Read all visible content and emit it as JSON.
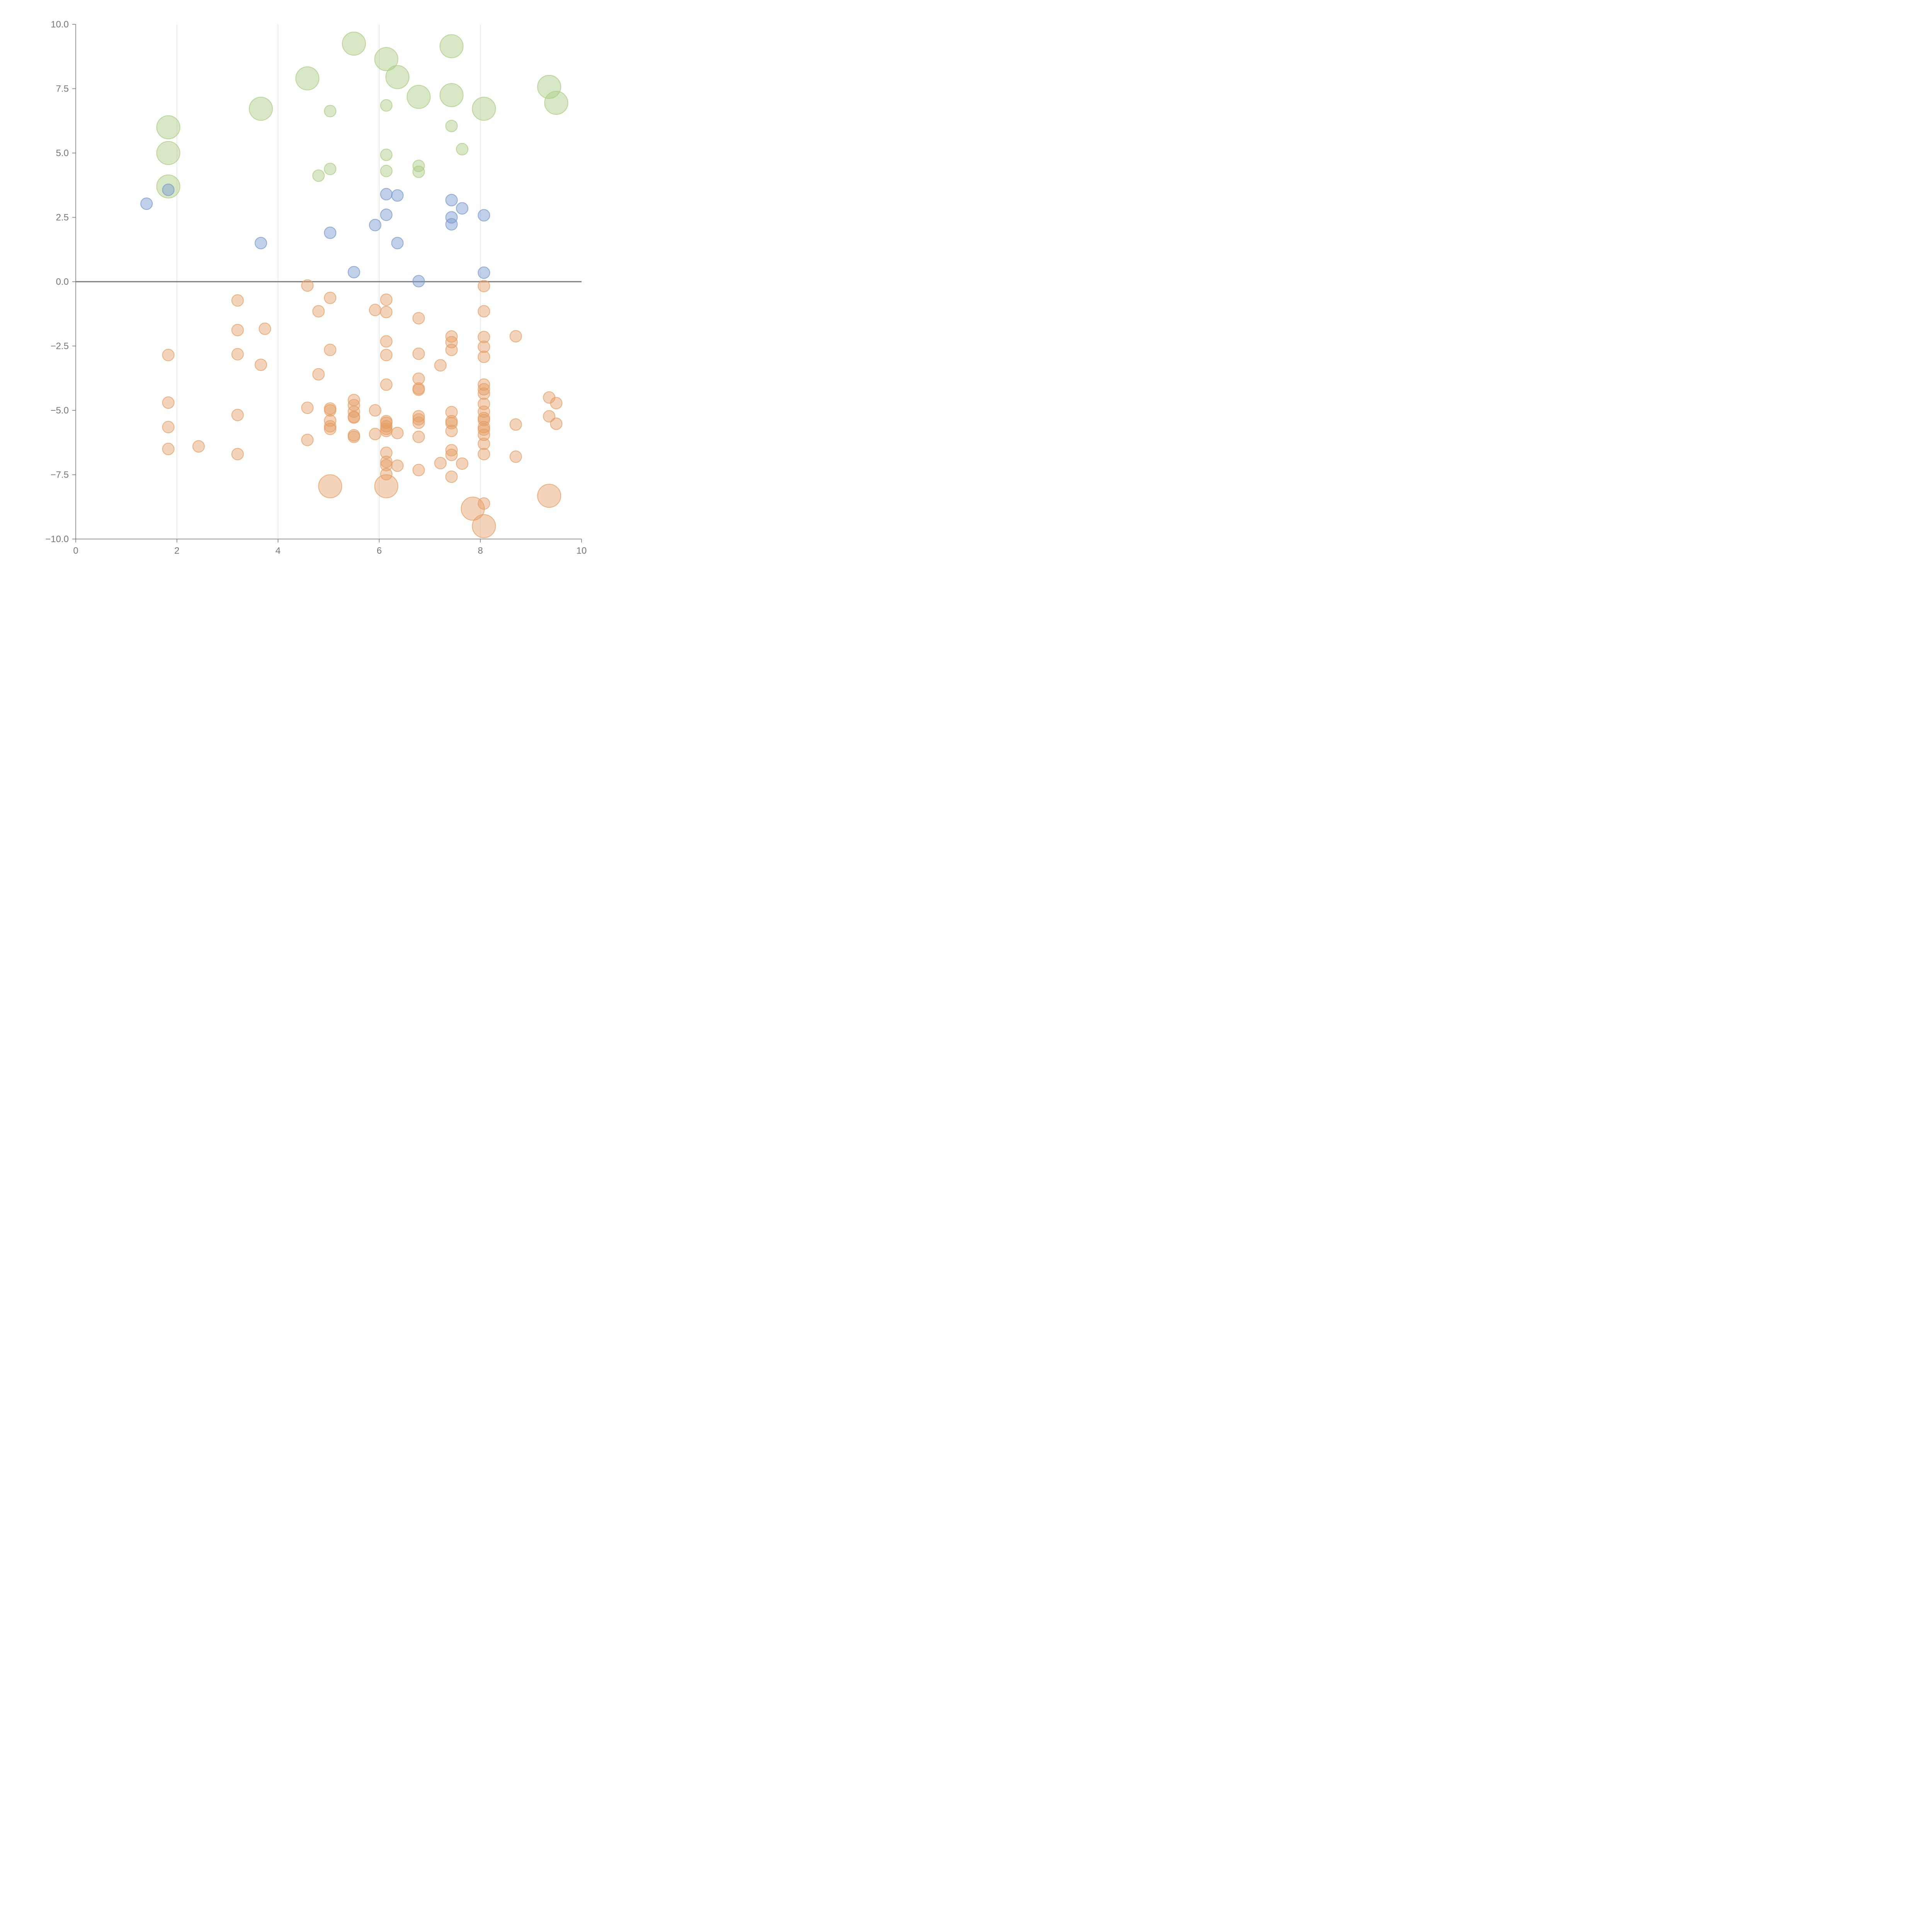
{
  "chart_data": {
    "type": "scatter",
    "title": "",
    "xlabel": "",
    "ylabel": "",
    "xlim": [
      0,
      10
    ],
    "ylim": [
      -10,
      10
    ],
    "xticks": [
      0,
      2,
      4,
      6,
      8,
      10
    ],
    "yticks": [
      -10.0,
      -7.5,
      -5.0,
      -2.5,
      0.0,
      2.5,
      5.0,
      7.5,
      10.0
    ],
    "ytick_labels": [
      "−10.0",
      "−7.5",
      "−5.0",
      "−2.5",
      "0.0",
      "2.5",
      "5.0",
      "7.5",
      "10.0"
    ],
    "xtick_labels": [
      "0",
      "2",
      "4",
      "6",
      "8",
      "10"
    ],
    "grid": "vertical lines at x ticks",
    "zero_line": true,
    "legend": "none",
    "colors": {
      "green": "#a9cc80",
      "blue": "#7597cf",
      "orange": "#e59d63",
      "axis": "#777777"
    },
    "series": [
      {
        "color_key": "green",
        "points": [
          [
            5.5,
            9.25,
            "L"
          ],
          [
            7.43,
            9.15,
            "L"
          ],
          [
            6.14,
            8.65,
            "L"
          ],
          [
            4.58,
            7.9,
            "L"
          ],
          [
            6.36,
            7.95,
            "L"
          ],
          [
            9.36,
            7.57,
            "L"
          ],
          [
            6.78,
            7.18,
            "L"
          ],
          [
            7.43,
            7.25,
            "L"
          ],
          [
            9.5,
            6.95,
            "L"
          ],
          [
            3.66,
            6.72,
            "L"
          ],
          [
            8.07,
            6.72,
            "L"
          ],
          [
            1.83,
            6.0,
            "L"
          ],
          [
            1.83,
            5.0,
            "L"
          ],
          [
            1.83,
            3.7,
            "L"
          ],
          [
            6.14,
            6.85,
            "S"
          ],
          [
            5.03,
            6.63,
            "S"
          ],
          [
            7.43,
            6.05,
            "S"
          ],
          [
            7.64,
            5.15,
            "S"
          ],
          [
            6.14,
            4.93,
            "S"
          ],
          [
            6.78,
            4.5,
            "S"
          ],
          [
            5.03,
            4.38,
            "S"
          ],
          [
            6.14,
            4.3,
            "S"
          ],
          [
            6.78,
            4.27,
            "S"
          ],
          [
            4.8,
            4.12,
            "S"
          ]
        ]
      },
      {
        "color_key": "blue",
        "points": [
          [
            1.83,
            3.57,
            "S"
          ],
          [
            1.4,
            3.03,
            "S"
          ],
          [
            6.14,
            3.4,
            "S"
          ],
          [
            6.36,
            3.35,
            "S"
          ],
          [
            7.43,
            3.17,
            "S"
          ],
          [
            7.64,
            2.85,
            "S"
          ],
          [
            6.14,
            2.6,
            "S"
          ],
          [
            8.07,
            2.58,
            "S"
          ],
          [
            7.43,
            2.5,
            "S"
          ],
          [
            7.43,
            2.23,
            "S"
          ],
          [
            5.92,
            2.2,
            "S"
          ],
          [
            5.03,
            1.9,
            "S"
          ],
          [
            3.66,
            1.5,
            "S"
          ],
          [
            6.36,
            1.5,
            "S"
          ],
          [
            5.5,
            0.37,
            "S"
          ],
          [
            8.07,
            0.35,
            "S"
          ],
          [
            6.78,
            0.02,
            "S"
          ]
        ]
      },
      {
        "color_key": "orange",
        "points": [
          [
            4.58,
            -0.15,
            "S"
          ],
          [
            8.07,
            -0.17,
            "S"
          ],
          [
            5.03,
            -0.63,
            "S"
          ],
          [
            6.14,
            -0.7,
            "S"
          ],
          [
            3.2,
            -0.73,
            "S"
          ],
          [
            5.92,
            -1.1,
            "S"
          ],
          [
            4.8,
            -1.15,
            "S"
          ],
          [
            6.14,
            -1.18,
            "S"
          ],
          [
            8.07,
            -1.15,
            "S"
          ],
          [
            6.78,
            -1.42,
            "S"
          ],
          [
            3.74,
            -1.83,
            "S"
          ],
          [
            3.2,
            -1.88,
            "S"
          ],
          [
            7.43,
            -2.13,
            "S"
          ],
          [
            8.07,
            -2.15,
            "S"
          ],
          [
            8.7,
            -2.12,
            "S"
          ],
          [
            6.14,
            -2.32,
            "S"
          ],
          [
            7.43,
            -2.35,
            "S"
          ],
          [
            8.07,
            -2.53,
            "S"
          ],
          [
            5.03,
            -2.65,
            "S"
          ],
          [
            7.43,
            -2.65,
            "S"
          ],
          [
            3.2,
            -2.82,
            "S"
          ],
          [
            6.78,
            -2.8,
            "S"
          ],
          [
            1.83,
            -2.85,
            "S"
          ],
          [
            6.14,
            -2.85,
            "S"
          ],
          [
            8.07,
            -2.92,
            "S"
          ],
          [
            3.66,
            -3.23,
            "S"
          ],
          [
            7.21,
            -3.25,
            "S"
          ],
          [
            4.8,
            -3.6,
            "S"
          ],
          [
            6.78,
            -3.77,
            "S"
          ],
          [
            8.07,
            -4.0,
            "S"
          ],
          [
            6.14,
            -4.0,
            "S"
          ],
          [
            6.78,
            -4.15,
            "S"
          ],
          [
            6.78,
            -4.2,
            "S"
          ],
          [
            8.07,
            -4.18,
            "S"
          ],
          [
            8.07,
            -4.35,
            "S"
          ],
          [
            9.36,
            -4.5,
            "S"
          ],
          [
            5.5,
            -4.6,
            "S"
          ],
          [
            1.83,
            -4.7,
            "S"
          ],
          [
            9.5,
            -4.72,
            "S"
          ],
          [
            5.5,
            -4.8,
            "S"
          ],
          [
            8.07,
            -4.75,
            "S"
          ],
          [
            4.58,
            -4.9,
            "S"
          ],
          [
            5.03,
            -4.93,
            "S"
          ],
          [
            5.92,
            -5.0,
            "S"
          ],
          [
            5.03,
            -5.0,
            "S"
          ],
          [
            5.5,
            -5.05,
            "S"
          ],
          [
            7.43,
            -5.07,
            "S"
          ],
          [
            8.07,
            -5.05,
            "S"
          ],
          [
            3.2,
            -5.18,
            "S"
          ],
          [
            6.78,
            -5.23,
            "S"
          ],
          [
            9.36,
            -5.23,
            "S"
          ],
          [
            5.5,
            -5.25,
            "S"
          ],
          [
            5.5,
            -5.28,
            "S"
          ],
          [
            8.07,
            -5.3,
            "S"
          ],
          [
            6.78,
            -5.35,
            "S"
          ],
          [
            8.07,
            -5.38,
            "S"
          ],
          [
            5.03,
            -5.4,
            "S"
          ],
          [
            6.14,
            -5.42,
            "S"
          ],
          [
            7.43,
            -5.42,
            "S"
          ],
          [
            6.14,
            -5.48,
            "S"
          ],
          [
            7.43,
            -5.5,
            "S"
          ],
          [
            6.78,
            -5.48,
            "S"
          ],
          [
            9.5,
            -5.52,
            "S"
          ],
          [
            8.7,
            -5.55,
            "S"
          ],
          [
            6.14,
            -5.62,
            "S"
          ],
          [
            5.03,
            -5.62,
            "S"
          ],
          [
            1.83,
            -5.65,
            "S"
          ],
          [
            8.07,
            -5.65,
            "S"
          ],
          [
            5.03,
            -5.72,
            "S"
          ],
          [
            6.14,
            -5.72,
            "S"
          ],
          [
            8.07,
            -5.75,
            "S"
          ],
          [
            6.14,
            -5.8,
            "S"
          ],
          [
            7.43,
            -5.8,
            "S"
          ],
          [
            6.36,
            -5.88,
            "S"
          ],
          [
            5.92,
            -5.92,
            "S"
          ],
          [
            8.07,
            -5.95,
            "S"
          ],
          [
            5.5,
            -5.97,
            "S"
          ],
          [
            5.5,
            -6.03,
            "S"
          ],
          [
            6.78,
            -6.03,
            "S"
          ],
          [
            4.58,
            -6.15,
            "S"
          ],
          [
            8.07,
            -6.3,
            "S"
          ],
          [
            2.43,
            -6.4,
            "S"
          ],
          [
            1.83,
            -6.5,
            "S"
          ],
          [
            7.43,
            -6.55,
            "S"
          ],
          [
            6.14,
            -6.65,
            "S"
          ],
          [
            3.2,
            -6.7,
            "S"
          ],
          [
            8.07,
            -6.7,
            "S"
          ],
          [
            7.43,
            -6.73,
            "S"
          ],
          [
            8.7,
            -6.8,
            "S"
          ],
          [
            6.14,
            -7.0,
            "S"
          ],
          [
            7.21,
            -7.05,
            "S"
          ],
          [
            7.64,
            -7.07,
            "S"
          ],
          [
            6.14,
            -7.13,
            "S"
          ],
          [
            6.36,
            -7.15,
            "S"
          ],
          [
            6.78,
            -7.32,
            "S"
          ],
          [
            6.14,
            -7.48,
            "S"
          ],
          [
            7.43,
            -7.58,
            "S"
          ],
          [
            8.07,
            -8.62,
            "S"
          ],
          [
            5.03,
            -7.95,
            "L"
          ],
          [
            6.14,
            -7.95,
            "L"
          ],
          [
            9.36,
            -8.32,
            "L"
          ],
          [
            7.85,
            -8.82,
            "L"
          ],
          [
            8.07,
            -9.5,
            "L"
          ]
        ]
      }
    ]
  }
}
